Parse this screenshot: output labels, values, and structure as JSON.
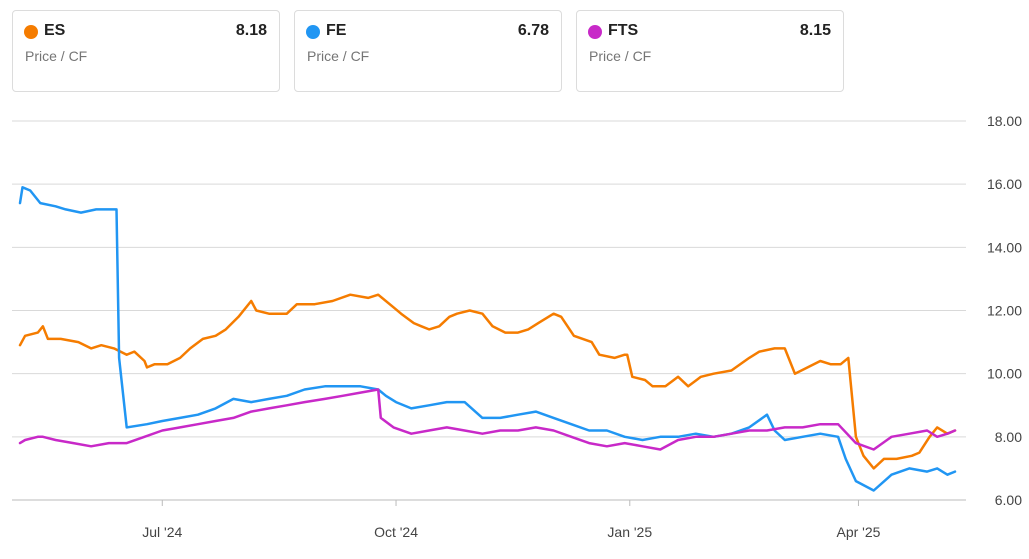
{
  "cards": [
    {
      "ticker": "ES",
      "value": "8.18",
      "metric": "Price / CF",
      "color": "#f57c00"
    },
    {
      "ticker": "FE",
      "value": "6.78",
      "metric": "Price / CF",
      "color": "#2196f3"
    },
    {
      "ticker": "FTS",
      "value": "8.15",
      "metric": "Price / CF",
      "color": "#c829c8"
    }
  ],
  "chart_data": {
    "type": "line",
    "ylabel": "",
    "xlabel": "",
    "ylim": [
      6,
      18
    ],
    "y_ticks": [
      "18.00",
      "16.00",
      "14.00",
      "12.00",
      "10.00",
      "8.00",
      "6.00"
    ],
    "x_ticks": [
      "Jul '24",
      "Oct '24",
      "Jan '25",
      "Apr '25"
    ],
    "x_tick_dates": [
      "2024-07-01",
      "2024-10-01",
      "2025-01-01",
      "2025-04-01"
    ],
    "x_range": [
      "2024-05-06",
      "2025-05-09"
    ],
    "grid": true,
    "series": [
      {
        "name": "ES",
        "color": "#f57c00",
        "points": [
          [
            "2024-05-06",
            10.9
          ],
          [
            "2024-05-08",
            11.2
          ],
          [
            "2024-05-13",
            11.3
          ],
          [
            "2024-05-15",
            11.5
          ],
          [
            "2024-05-17",
            11.1
          ],
          [
            "2024-05-22",
            11.1
          ],
          [
            "2024-05-29",
            11.0
          ],
          [
            "2024-06-03",
            10.8
          ],
          [
            "2024-06-07",
            10.9
          ],
          [
            "2024-06-12",
            10.8
          ],
          [
            "2024-06-17",
            10.6
          ],
          [
            "2024-06-20",
            10.7
          ],
          [
            "2024-06-24",
            10.4
          ],
          [
            "2024-06-25",
            10.2
          ],
          [
            "2024-06-28",
            10.3
          ],
          [
            "2024-07-03",
            10.3
          ],
          [
            "2024-07-08",
            10.5
          ],
          [
            "2024-07-12",
            10.8
          ],
          [
            "2024-07-17",
            11.1
          ],
          [
            "2024-07-22",
            11.2
          ],
          [
            "2024-07-26",
            11.4
          ],
          [
            "2024-07-31",
            11.8
          ],
          [
            "2024-08-05",
            12.3
          ],
          [
            "2024-08-07",
            12.0
          ],
          [
            "2024-08-12",
            11.9
          ],
          [
            "2024-08-19",
            11.9
          ],
          [
            "2024-08-23",
            12.2
          ],
          [
            "2024-08-30",
            12.2
          ],
          [
            "2024-09-06",
            12.3
          ],
          [
            "2024-09-13",
            12.5
          ],
          [
            "2024-09-20",
            12.4
          ],
          [
            "2024-09-24",
            12.5
          ],
          [
            "2024-09-30",
            12.1
          ],
          [
            "2024-10-03",
            11.9
          ],
          [
            "2024-10-08",
            11.6
          ],
          [
            "2024-10-11",
            11.5
          ],
          [
            "2024-10-14",
            11.4
          ],
          [
            "2024-10-18",
            11.5
          ],
          [
            "2024-10-22",
            11.8
          ],
          [
            "2024-10-25",
            11.9
          ],
          [
            "2024-10-30",
            12.0
          ],
          [
            "2024-11-04",
            11.9
          ],
          [
            "2024-11-08",
            11.5
          ],
          [
            "2024-11-13",
            11.3
          ],
          [
            "2024-11-18",
            11.3
          ],
          [
            "2024-11-22",
            11.4
          ],
          [
            "2024-11-26",
            11.6
          ],
          [
            "2024-12-02",
            11.9
          ],
          [
            "2024-12-05",
            11.8
          ],
          [
            "2024-12-10",
            11.2
          ],
          [
            "2024-12-17",
            11.0
          ],
          [
            "2024-12-20",
            10.6
          ],
          [
            "2024-12-26",
            10.5
          ],
          [
            "2024-12-30",
            10.6
          ],
          [
            "2024-12-31",
            10.6
          ],
          [
            "2025-01-02",
            9.9
          ],
          [
            "2025-01-07",
            9.8
          ],
          [
            "2025-01-10",
            9.6
          ],
          [
            "2025-01-15",
            9.6
          ],
          [
            "2025-01-20",
            9.9
          ],
          [
            "2025-01-24",
            9.6
          ],
          [
            "2025-01-29",
            9.9
          ],
          [
            "2025-02-03",
            10.0
          ],
          [
            "2025-02-10",
            10.1
          ],
          [
            "2025-02-17",
            10.5
          ],
          [
            "2025-02-21",
            10.7
          ],
          [
            "2025-02-27",
            10.8
          ],
          [
            "2025-03-03",
            10.8
          ],
          [
            "2025-03-07",
            10.0
          ],
          [
            "2025-03-12",
            10.2
          ],
          [
            "2025-03-17",
            10.4
          ],
          [
            "2025-03-21",
            10.3
          ],
          [
            "2025-03-25",
            10.3
          ],
          [
            "2025-03-28",
            10.5
          ],
          [
            "2025-03-31",
            8.0
          ],
          [
            "2025-04-03",
            7.4
          ],
          [
            "2025-04-07",
            7.0
          ],
          [
            "2025-04-11",
            7.3
          ],
          [
            "2025-04-16",
            7.3
          ],
          [
            "2025-04-22",
            7.4
          ],
          [
            "2025-04-25",
            7.5
          ],
          [
            "2025-04-29",
            8.0
          ],
          [
            "2025-05-02",
            8.3
          ],
          [
            "2025-05-06",
            8.1
          ],
          [
            "2025-05-09",
            8.2
          ]
        ]
      },
      {
        "name": "FE",
        "color": "#2196f3",
        "points": [
          [
            "2024-05-06",
            15.4
          ],
          [
            "2024-05-07",
            15.9
          ],
          [
            "2024-05-10",
            15.8
          ],
          [
            "2024-05-14",
            15.4
          ],
          [
            "2024-05-20",
            15.3
          ],
          [
            "2024-05-24",
            15.2
          ],
          [
            "2024-05-30",
            15.1
          ],
          [
            "2024-06-05",
            15.2
          ],
          [
            "2024-06-10",
            15.2
          ],
          [
            "2024-06-13",
            15.2
          ],
          [
            "2024-06-14",
            10.5
          ],
          [
            "2024-06-17",
            8.3
          ],
          [
            "2024-06-25",
            8.4
          ],
          [
            "2024-07-01",
            8.5
          ],
          [
            "2024-07-08",
            8.6
          ],
          [
            "2024-07-15",
            8.7
          ],
          [
            "2024-07-22",
            8.9
          ],
          [
            "2024-07-29",
            9.2
          ],
          [
            "2024-08-05",
            9.1
          ],
          [
            "2024-08-12",
            9.2
          ],
          [
            "2024-08-19",
            9.3
          ],
          [
            "2024-08-26",
            9.5
          ],
          [
            "2024-09-03",
            9.6
          ],
          [
            "2024-09-10",
            9.6
          ],
          [
            "2024-09-17",
            9.6
          ],
          [
            "2024-09-24",
            9.5
          ],
          [
            "2024-09-27",
            9.3
          ],
          [
            "2024-10-01",
            9.1
          ],
          [
            "2024-10-07",
            8.9
          ],
          [
            "2024-10-14",
            9.0
          ],
          [
            "2024-10-21",
            9.1
          ],
          [
            "2024-10-28",
            9.1
          ],
          [
            "2024-11-04",
            8.6
          ],
          [
            "2024-11-11",
            8.6
          ],
          [
            "2024-11-18",
            8.7
          ],
          [
            "2024-11-25",
            8.8
          ],
          [
            "2024-12-02",
            8.6
          ],
          [
            "2024-12-09",
            8.4
          ],
          [
            "2024-12-16",
            8.2
          ],
          [
            "2024-12-23",
            8.2
          ],
          [
            "2024-12-30",
            8.0
          ],
          [
            "2025-01-06",
            7.9
          ],
          [
            "2025-01-13",
            8.0
          ],
          [
            "2025-01-20",
            8.0
          ],
          [
            "2025-01-27",
            8.1
          ],
          [
            "2025-02-03",
            8.0
          ],
          [
            "2025-02-10",
            8.1
          ],
          [
            "2025-02-17",
            8.3
          ],
          [
            "2025-02-24",
            8.7
          ],
          [
            "2025-02-27",
            8.2
          ],
          [
            "2025-03-03",
            7.9
          ],
          [
            "2025-03-10",
            8.0
          ],
          [
            "2025-03-17",
            8.1
          ],
          [
            "2025-03-24",
            8.0
          ],
          [
            "2025-03-27",
            7.3
          ],
          [
            "2025-03-31",
            6.6
          ],
          [
            "2025-04-07",
            6.3
          ],
          [
            "2025-04-14",
            6.8
          ],
          [
            "2025-04-21",
            7.0
          ],
          [
            "2025-04-28",
            6.9
          ],
          [
            "2025-05-02",
            7.0
          ],
          [
            "2025-05-06",
            6.8
          ],
          [
            "2025-05-09",
            6.9
          ]
        ]
      },
      {
        "name": "FTS",
        "color": "#c829c8",
        "points": [
          [
            "2024-05-06",
            7.8
          ],
          [
            "2024-05-08",
            7.9
          ],
          [
            "2024-05-13",
            8.0
          ],
          [
            "2024-05-15",
            8.0
          ],
          [
            "2024-05-20",
            7.9
          ],
          [
            "2024-05-27",
            7.8
          ],
          [
            "2024-06-03",
            7.7
          ],
          [
            "2024-06-10",
            7.8
          ],
          [
            "2024-06-17",
            7.8
          ],
          [
            "2024-06-24",
            8.0
          ],
          [
            "2024-07-01",
            8.2
          ],
          [
            "2024-07-08",
            8.3
          ],
          [
            "2024-07-15",
            8.4
          ],
          [
            "2024-07-22",
            8.5
          ],
          [
            "2024-07-29",
            8.6
          ],
          [
            "2024-08-05",
            8.8
          ],
          [
            "2024-08-12",
            8.9
          ],
          [
            "2024-08-19",
            9.0
          ],
          [
            "2024-08-26",
            9.1
          ],
          [
            "2024-09-03",
            9.2
          ],
          [
            "2024-09-10",
            9.3
          ],
          [
            "2024-09-17",
            9.4
          ],
          [
            "2024-09-24",
            9.5
          ],
          [
            "2024-09-25",
            8.6
          ],
          [
            "2024-09-30",
            8.3
          ],
          [
            "2024-10-07",
            8.1
          ],
          [
            "2024-10-14",
            8.2
          ],
          [
            "2024-10-21",
            8.3
          ],
          [
            "2024-10-28",
            8.2
          ],
          [
            "2024-11-04",
            8.1
          ],
          [
            "2024-11-11",
            8.2
          ],
          [
            "2024-11-18",
            8.2
          ],
          [
            "2024-11-25",
            8.3
          ],
          [
            "2024-12-02",
            8.2
          ],
          [
            "2024-12-09",
            8.0
          ],
          [
            "2024-12-16",
            7.8
          ],
          [
            "2024-12-23",
            7.7
          ],
          [
            "2024-12-30",
            7.8
          ],
          [
            "2025-01-06",
            7.7
          ],
          [
            "2025-01-13",
            7.6
          ],
          [
            "2025-01-20",
            7.9
          ],
          [
            "2025-01-27",
            8.0
          ],
          [
            "2025-02-03",
            8.0
          ],
          [
            "2025-02-10",
            8.1
          ],
          [
            "2025-02-17",
            8.2
          ],
          [
            "2025-02-24",
            8.2
          ],
          [
            "2025-03-03",
            8.3
          ],
          [
            "2025-03-10",
            8.3
          ],
          [
            "2025-03-17",
            8.4
          ],
          [
            "2025-03-24",
            8.4
          ],
          [
            "2025-03-31",
            7.8
          ],
          [
            "2025-04-07",
            7.6
          ],
          [
            "2025-04-14",
            8.0
          ],
          [
            "2025-04-21",
            8.1
          ],
          [
            "2025-04-28",
            8.2
          ],
          [
            "2025-05-02",
            8.0
          ],
          [
            "2025-05-06",
            8.1
          ],
          [
            "2025-05-09",
            8.2
          ]
        ]
      }
    ]
  }
}
